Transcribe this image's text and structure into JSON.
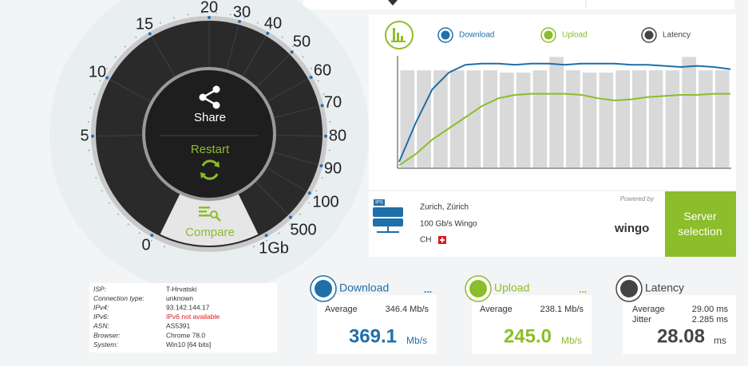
{
  "gauge": {
    "scale_labels": [
      "0",
      "5",
      "10",
      "15",
      "20",
      "30",
      "40",
      "50",
      "60",
      "70",
      "80",
      "90",
      "100",
      "500",
      "1Gb"
    ],
    "share": "Share",
    "restart": "Restart",
    "compare": "Compare"
  },
  "graph": {
    "ylim": [
      0,
      100
    ],
    "series": [
      {
        "name": "Download",
        "color": "#1f6fa9",
        "values": [
          5,
          40,
          70,
          85,
          92,
          93,
          93,
          92,
          93,
          93,
          92,
          93,
          93,
          93,
          92,
          92,
          91,
          90,
          91,
          90,
          88
        ]
      },
      {
        "name": "Upload",
        "color": "#8cbd2a",
        "values": [
          2,
          12,
          25,
          35,
          45,
          55,
          62,
          65,
          66,
          66,
          66,
          65,
          62,
          60,
          61,
          63,
          64,
          65,
          65,
          66,
          66
        ]
      },
      {
        "name": "Latency",
        "color": "#d9d9d9",
        "values": [
          87,
          87,
          87,
          87,
          87,
          87,
          85,
          85,
          87,
          99,
          87,
          85,
          85,
          87,
          87,
          87,
          87,
          99,
          87,
          87
        ]
      }
    ]
  },
  "server": {
    "icon_label": "IPS",
    "city": "Zurich, Zürich",
    "provider": "100 Gb/s Wingo",
    "country": "CH",
    "powered_by": "Powered by",
    "brand": "wingo",
    "button": "Server selection"
  },
  "info": {
    "rows": [
      [
        "ISP:",
        "T-Hrvatski"
      ],
      [
        "Connection type:",
        "unknown"
      ],
      [
        "IPv4:",
        "93.142.144.17"
      ],
      [
        "IPv6:",
        "IPv6 not available"
      ],
      [
        "ASN:",
        "AS5391"
      ],
      [
        "Browser:",
        "Chrome 78.0"
      ],
      [
        "System:",
        "Win10 [64 bits]"
      ]
    ]
  },
  "results": {
    "download": {
      "title": "Download",
      "more": "...",
      "average_label": "Average",
      "average": "346.4 Mb/s",
      "value": "369.1",
      "unit": "Mb/s"
    },
    "upload": {
      "title": "Upload",
      "more": "...",
      "average_label": "Average",
      "average": "238.1 Mb/s",
      "value": "245.0",
      "unit": "Mb/s"
    },
    "latency": {
      "title": "Latency",
      "average_label": "Average",
      "average": "29.00 ms",
      "jitter_label": "Jitter",
      "jitter": "2.285 ms",
      "value": "28.08",
      "unit": "ms"
    }
  }
}
